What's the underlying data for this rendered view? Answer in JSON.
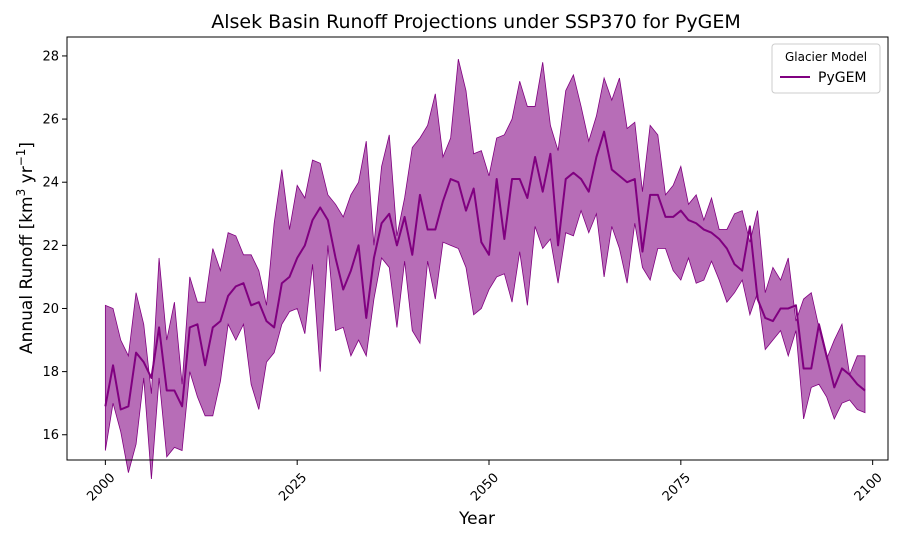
{
  "chart_data": {
    "type": "line",
    "title": "Alsek Basin Runoff Projections under SSP370 for PyGEM",
    "xlabel": "Year",
    "ylabel_main": "Annual Runoff [km",
    "ylabel_sup1": "3",
    "ylabel_mid": " yr",
    "ylabel_sup2": "−1",
    "ylabel_end": "]",
    "xlim": [
      1995,
      2102
    ],
    "ylim": [
      15.2,
      28.6
    ],
    "xticks": [
      2000,
      2025,
      2050,
      2075,
      2100
    ],
    "yticks": [
      16,
      18,
      20,
      22,
      24,
      26,
      28
    ],
    "colors": {
      "line": "#800080",
      "band_fill": "#b76db7",
      "band_edge": "#800080"
    },
    "legend": {
      "title": "Glacier Model",
      "placement": "top-right"
    },
    "series": [
      {
        "name": "PyGEM",
        "x_start": 2000,
        "x_step": 1,
        "mean": [
          16.9,
          18.2,
          16.8,
          16.9,
          18.6,
          18.3,
          17.8,
          19.4,
          17.4,
          17.4,
          16.9,
          19.4,
          19.5,
          18.2,
          19.4,
          19.6,
          20.4,
          20.7,
          20.8,
          20.1,
          20.2,
          19.6,
          19.4,
          20.8,
          21.0,
          21.6,
          22.0,
          22.8,
          23.2,
          22.8,
          21.6,
          20.6,
          21.2,
          22.0,
          19.7,
          21.6,
          22.7,
          23.0,
          22.0,
          22.9,
          21.7,
          23.6,
          22.5,
          22.5,
          23.4,
          24.1,
          24.0,
          23.1,
          23.8,
          22.1,
          21.7,
          24.1,
          22.2,
          24.1,
          24.1,
          23.5,
          24.8,
          23.7,
          24.9,
          22.0,
          24.1,
          24.3,
          24.1,
          23.7,
          24.8,
          25.6,
          24.4,
          24.2,
          24.0,
          24.1,
          21.8,
          23.6,
          23.6,
          22.9,
          22.9,
          23.1,
          22.8,
          22.7,
          22.5,
          22.4,
          22.2,
          21.9,
          21.4,
          21.2,
          22.6,
          20.3,
          19.7,
          19.6,
          20.0,
          20.0,
          20.1,
          18.1,
          18.1,
          19.5,
          18.5,
          17.5,
          18.1,
          17.9,
          17.6,
          17.4
        ],
        "upper": [
          20.1,
          20.0,
          19.0,
          18.5,
          20.5,
          19.5,
          17.3,
          21.6,
          19.0,
          20.2,
          17.6,
          21.0,
          20.2,
          20.2,
          21.9,
          21.2,
          22.4,
          22.3,
          21.7,
          21.7,
          21.2,
          20.1,
          22.7,
          24.4,
          22.5,
          23.9,
          23.5,
          24.7,
          24.6,
          23.6,
          23.3,
          22.9,
          23.6,
          24.0,
          25.3,
          22.0,
          24.5,
          25.5,
          22.3,
          23.5,
          25.1,
          25.4,
          25.8,
          26.8,
          24.8,
          25.4,
          27.9,
          26.9,
          24.9,
          25.0,
          24.2,
          25.4,
          25.5,
          26.0,
          27.2,
          26.4,
          26.4,
          27.8,
          25.8,
          25.0,
          26.9,
          27.4,
          26.4,
          25.3,
          26.1,
          27.3,
          26.6,
          27.3,
          25.7,
          25.9,
          23.7,
          25.8,
          25.5,
          23.6,
          23.9,
          24.5,
          23.3,
          23.6,
          22.8,
          23.5,
          22.5,
          22.5,
          23.0,
          23.1,
          22.1,
          23.1,
          20.5,
          21.3,
          20.9,
          21.6,
          19.6,
          20.3,
          20.5,
          19.4,
          18.4,
          19.0,
          19.5,
          17.9,
          18.5,
          18.5
        ],
        "lower": [
          15.5,
          17.0,
          16.1,
          14.8,
          15.7,
          17.8,
          14.6,
          17.8,
          15.3,
          15.6,
          15.5,
          18.0,
          17.2,
          16.6,
          16.6,
          17.7,
          19.5,
          19.0,
          19.5,
          17.6,
          16.8,
          18.3,
          18.6,
          19.5,
          19.9,
          20.0,
          19.2,
          21.4,
          18.0,
          22.0,
          19.3,
          19.4,
          18.5,
          19.0,
          18.5,
          20.3,
          21.6,
          21.3,
          19.4,
          21.5,
          19.3,
          18.9,
          21.5,
          20.3,
          22.1,
          22.0,
          21.9,
          21.3,
          19.8,
          20.0,
          20.6,
          21.0,
          21.1,
          20.2,
          21.8,
          20.1,
          22.6,
          21.9,
          22.2,
          20.8,
          22.4,
          22.3,
          23.1,
          22.4,
          23.0,
          21.0,
          22.6,
          21.9,
          20.8,
          22.7,
          21.3,
          20.9,
          21.9,
          21.9,
          21.2,
          20.9,
          21.6,
          20.8,
          20.9,
          21.5,
          20.9,
          20.2,
          20.5,
          20.9,
          19.8,
          20.5,
          18.7,
          19.0,
          19.3,
          18.5,
          19.3,
          16.5,
          17.5,
          17.6,
          17.2,
          16.5,
          17.0,
          17.1,
          16.8,
          16.7
        ]
      }
    ]
  }
}
